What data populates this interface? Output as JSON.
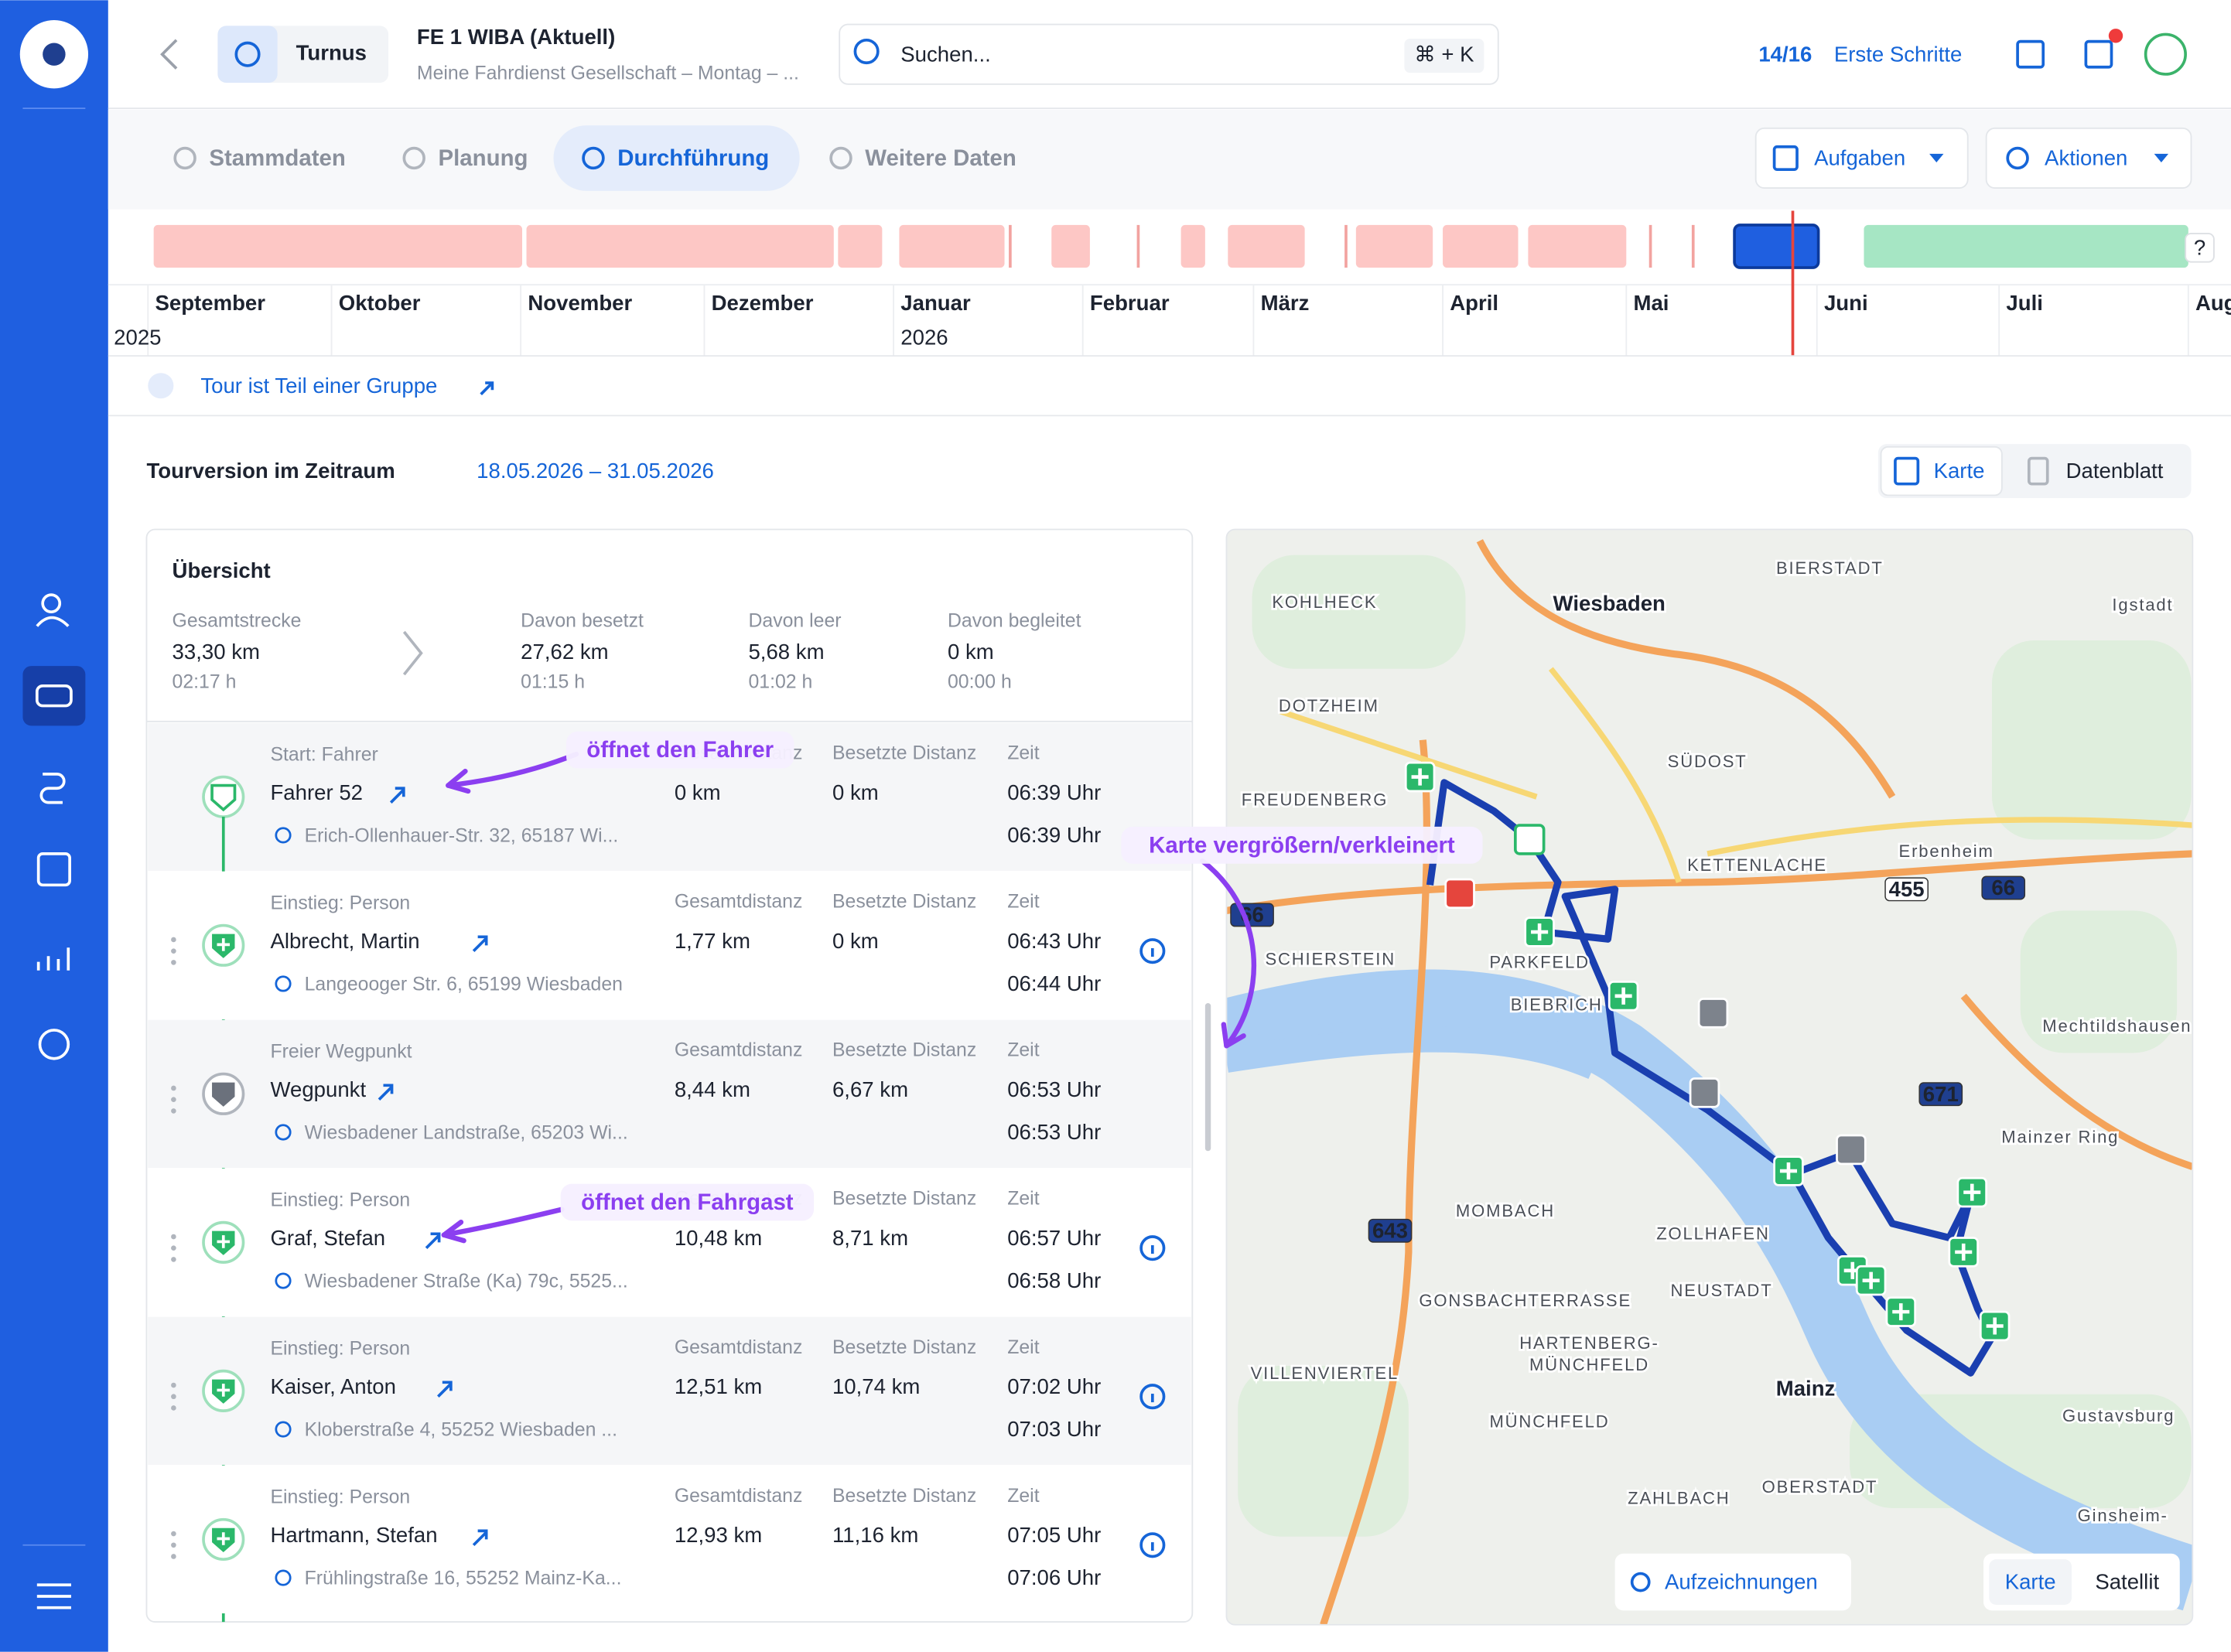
{
  "header": {
    "turnus": "Turnus",
    "title": "FE 1 WIBA (Aktuell)",
    "subtitle": "Meine Fahrdienst Gesellschaft – Montag – ...",
    "search_placeholder": "Suchen...",
    "search_shortcut": "⌘ + K",
    "steps_count": "14/16",
    "steps_label": "Erste Schritte"
  },
  "tabs": [
    "Stammdaten",
    "Planung",
    "Durchführung",
    "Weitere Daten"
  ],
  "actions": [
    "Aufgaben",
    "Aktionen"
  ],
  "timeline": {
    "months": [
      "September",
      "Oktober",
      "November",
      "Dezember",
      "Januar",
      "Februar",
      "März",
      "April",
      "Mai",
      "Juni",
      "Juli",
      "August"
    ],
    "years": [
      "2025",
      "2026"
    ],
    "help": "?"
  },
  "group_link": "Tour ist Teil einer Gruppe",
  "section": {
    "title": "Tourversion im Zeitraum",
    "range": "18.05.2026 – 31.05.2026",
    "views": [
      "Karte",
      "Datenblatt"
    ]
  },
  "overview": {
    "title": "Übersicht",
    "stats": [
      {
        "label": "Gesamtstrecke",
        "value": "33,30 km",
        "time": "02:17 h"
      },
      {
        "label": "Davon besetzt",
        "value": "27,62 km",
        "time": "01:15 h"
      },
      {
        "label": "Davon leer",
        "value": "5,68 km",
        "time": "01:02 h"
      },
      {
        "label": "Davon begleitet",
        "value": "0 km",
        "time": "00:00 h"
      }
    ]
  },
  "column_headers": [
    "Gesamtdistanz",
    "Besetzte Distanz",
    "Zeit"
  ],
  "stops": [
    {
      "type": "Start: Fahrer",
      "name": "Fahrer 52",
      "address": "Erich-Ollenhauer-Str. 32, 65187 Wi...",
      "total": "0 km",
      "occupied": "0 km",
      "times": [
        "06:39 Uhr",
        "06:39 Uhr"
      ]
    },
    {
      "type": "Einstieg: Person",
      "name": "Albrecht, Martin",
      "address": "Langeooger Str. 6, 65199 Wiesbaden",
      "total": "1,77 km",
      "occupied": "0 km",
      "times": [
        "06:43 Uhr",
        "06:44 Uhr"
      ]
    },
    {
      "type": "Freier Wegpunkt",
      "name": "Wegpunkt",
      "address": "Wiesbadener Landstraße, 65203 Wi...",
      "total": "8,44 km",
      "occupied": "6,67 km",
      "times": [
        "06:53 Uhr",
        "06:53 Uhr"
      ]
    },
    {
      "type": "Einstieg: Person",
      "name": "Graf, Stefan",
      "address": "Wiesbadener Straße (Ka) 79c, 5525...",
      "total": "10,48 km",
      "occupied": "8,71 km",
      "times": [
        "06:57 Uhr",
        "06:58 Uhr"
      ]
    },
    {
      "type": "Einstieg: Person",
      "name": "Kaiser, Anton",
      "address": "Kloberstraße 4, 55252 Wiesbaden ...",
      "total": "12,51 km",
      "occupied": "10,74 km",
      "times": [
        "07:02 Uhr",
        "07:03 Uhr"
      ]
    },
    {
      "type": "Einstieg: Person",
      "name": "Hartmann, Stefan",
      "address": "Frühlingstraße 16, 55252 Mainz-Ka...",
      "total": "12,93 km",
      "occupied": "11,16 km",
      "times": [
        "07:05 Uhr",
        "07:06 Uhr"
      ]
    }
  ],
  "annotations": [
    "öffnet den Fahrer",
    "Karte vergrößern/verkleinert",
    "öffnet den Fahrgast"
  ],
  "map": {
    "cities": [
      "Wiesbaden",
      "Mainz"
    ],
    "labels": [
      "BIERSTADT",
      "KOHLHECK",
      "Igstadt",
      "DOTZHEIM",
      "SÜDOST",
      "FREUDENBERG",
      "Erbenheim",
      "KETTENLACHE",
      "SCHIERSTEIN",
      "PARKFELD",
      "BIEBRICH",
      "Mechtildshausen",
      "Mainzer Ring",
      "MOMBACH",
      "ZOLLHAFEN",
      "NEUSTADT",
      "GONSBACHTERRASSE",
      "HARTENBERG-",
      "MÜNCHFELD",
      "VILLENVIERTEL",
      "Gustavsburg",
      "MÜNCHFELD",
      "ZAHLBACH",
      "OBERSTADT",
      "Ginsheim-"
    ],
    "shields": [
      "455",
      "66",
      "671",
      "643",
      "66"
    ],
    "buttons": [
      "Aufzeichnungen",
      "Karte",
      "Satellit"
    ]
  }
}
